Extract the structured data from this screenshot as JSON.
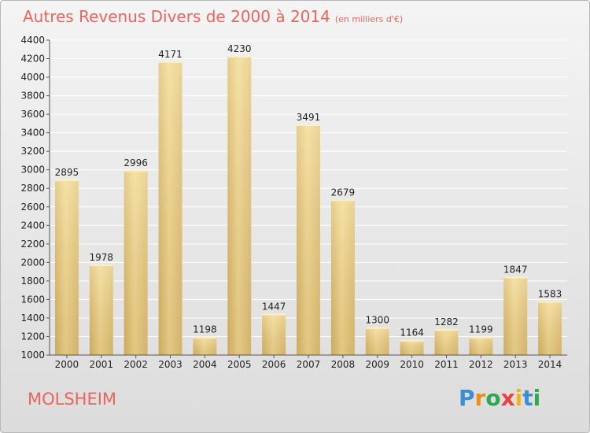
{
  "title": {
    "main": "Autres Revenus Divers de 2000 à 2014",
    "unit": "(en milliers d'€)"
  },
  "location": "MOLSHEIM",
  "brand": {
    "letters": [
      "P",
      "r",
      "o",
      "x",
      "i",
      "t",
      "i"
    ],
    "colors": [
      "#3a8fd0",
      "#f08a1c",
      "#2fa84f",
      "#e8423c",
      "#f0b51a",
      "#3a8fd0",
      "#2fa84f"
    ]
  },
  "colors": {
    "title": "#e8665d",
    "bar_light": "#f7e2a6",
    "bar_dark": "#d4b46a",
    "grid": "#ffffff"
  },
  "chart_data": {
    "type": "bar",
    "title": "Autres Revenus Divers de 2000 à 2014",
    "subtitle": "(en milliers d'€)",
    "xlabel": "",
    "ylabel": "",
    "categories": [
      "2000",
      "2001",
      "2002",
      "2003",
      "2004",
      "2005",
      "2006",
      "2007",
      "2008",
      "2009",
      "2010",
      "2011",
      "2012",
      "2013",
      "2014"
    ],
    "values": [
      2895,
      1978,
      2996,
      4171,
      1198,
      4230,
      1447,
      3491,
      2679,
      1300,
      1164,
      1282,
      1199,
      1847,
      1583
    ],
    "ylim": [
      1000,
      4400
    ],
    "yticks": [
      1000,
      1200,
      1400,
      1600,
      1800,
      2000,
      2200,
      2400,
      2600,
      2800,
      3000,
      3200,
      3400,
      3600,
      3800,
      4000,
      4200,
      4400
    ],
    "grid": true,
    "data_labels": true
  }
}
